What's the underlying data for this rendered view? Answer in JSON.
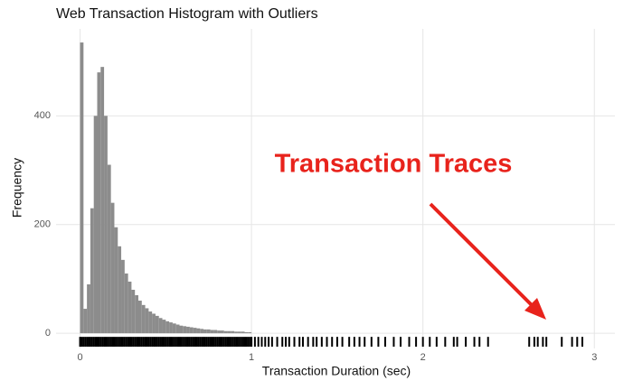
{
  "chart_data": {
    "type": "histogram",
    "title": "Web Transaction Histogram with Outliers",
    "x_label": "Transaction Duration (sec)",
    "y_label": "Frequency",
    "annotation": "Transaction Traces",
    "color": "#8c8c8c",
    "rug_color": "#000000",
    "annotation_color": "#e8231c",
    "grid": true,
    "bins": [
      0,
      0.02,
      0.04,
      0.06,
      0.08,
      0.1,
      0.12,
      0.14,
      0.16,
      0.18,
      0.2,
      0.22,
      0.24,
      0.26,
      0.28,
      0.3,
      0.32,
      0.34,
      0.36,
      0.38,
      0.4,
      0.42,
      0.44,
      0.46,
      0.48,
      0.5,
      0.52,
      0.54,
      0.56,
      0.58,
      0.6,
      0.62,
      0.64,
      0.66,
      0.68,
      0.7,
      0.72,
      0.74,
      0.76,
      0.78,
      0.8,
      0.82,
      0.84,
      0.86,
      0.88,
      0.9,
      0.92,
      0.94,
      0.96,
      0.98,
      1.0
    ],
    "values": [
      535,
      45,
      90,
      230,
      400,
      480,
      490,
      400,
      310,
      240,
      195,
      160,
      135,
      110,
      95,
      80,
      70,
      60,
      52,
      46,
      40,
      36,
      32,
      28,
      25,
      22,
      20,
      18,
      16,
      14,
      13,
      12,
      11,
      10,
      9,
      8,
      7,
      7,
      6,
      6,
      5,
      5,
      4,
      4,
      4,
      3,
      3,
      3,
      2,
      2
    ],
    "rug": [
      0,
      0.01,
      0.02,
      0.03,
      0.04,
      0.05,
      0.06,
      0.07,
      0.08,
      0.09,
      0.1,
      0.11,
      0.12,
      0.13,
      0.14,
      0.15,
      0.16,
      0.17,
      0.18,
      0.19,
      0.2,
      0.21,
      0.22,
      0.23,
      0.24,
      0.25,
      0.26,
      0.27,
      0.28,
      0.29,
      0.3,
      0.31,
      0.32,
      0.33,
      0.34,
      0.35,
      0.36,
      0.37,
      0.38,
      0.39,
      0.4,
      0.41,
      0.42,
      0.43,
      0.44,
      0.45,
      0.46,
      0.47,
      0.48,
      0.49,
      0.5,
      0.51,
      0.52,
      0.53,
      0.54,
      0.55,
      0.56,
      0.57,
      0.58,
      0.59,
      0.6,
      0.61,
      0.62,
      0.63,
      0.64,
      0.65,
      0.66,
      0.67,
      0.68,
      0.69,
      0.7,
      0.71,
      0.72,
      0.73,
      0.74,
      0.75,
      0.76,
      0.77,
      0.78,
      0.79,
      0.8,
      0.81,
      0.82,
      0.83,
      0.84,
      0.85,
      0.86,
      0.87,
      0.88,
      0.89,
      0.9,
      0.91,
      0.92,
      0.93,
      0.94,
      0.95,
      0.96,
      0.97,
      0.98,
      0.99,
      1.0,
      1.02,
      1.04,
      1.06,
      1.08,
      1.1,
      1.12,
      1.15,
      1.18,
      1.2,
      1.22,
      1.25,
      1.28,
      1.3,
      1.33,
      1.36,
      1.38,
      1.41,
      1.44,
      1.47,
      1.5,
      1.53,
      1.57,
      1.6,
      1.63,
      1.66,
      1.7,
      1.74,
      1.78,
      1.83,
      1.87,
      1.92,
      1.96,
      2.0,
      2.04,
      2.08,
      2.13,
      2.18,
      2.2,
      2.25,
      2.3,
      2.33,
      2.38,
      2.62,
      2.65,
      2.67,
      2.7,
      2.72,
      2.81,
      2.87,
      2.9,
      2.93
    ],
    "xlim": [
      -0.14,
      3.12
    ],
    "xticks": [
      0,
      1,
      2,
      3
    ],
    "ylim": [
      -28,
      560
    ],
    "yticks": [
      0,
      200,
      400
    ]
  }
}
